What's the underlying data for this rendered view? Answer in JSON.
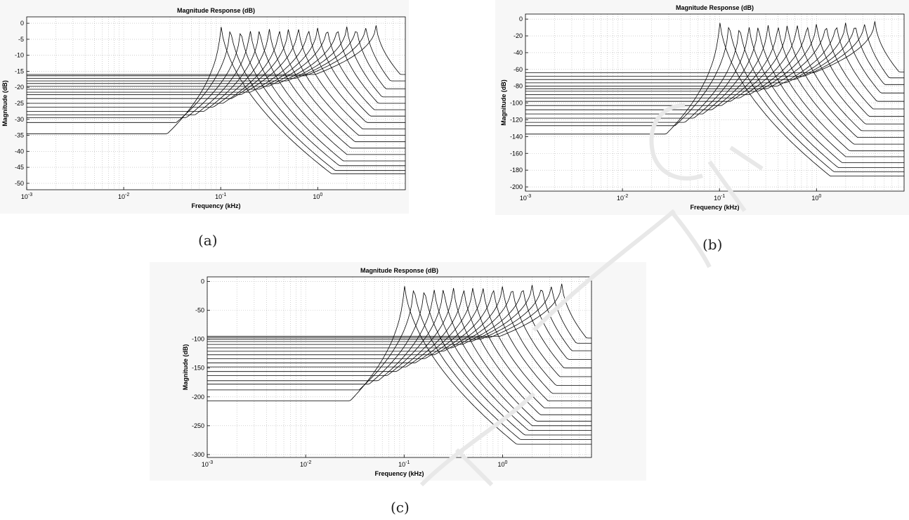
{
  "captions": {
    "a": "(a)",
    "b": "(b)",
    "c": "(c)"
  },
  "chart_data": [
    {
      "id": "a",
      "type": "line",
      "title": "Magnitude Response (dB)",
      "xlabel": "Frequency (kHz)",
      "ylabel": "Magnitude (dB)",
      "x_scale": "log",
      "xlim": [
        0.001,
        8
      ],
      "ylim": [
        -52,
        2
      ],
      "yticks": [
        0,
        -5,
        -10,
        -15,
        -20,
        -25,
        -30,
        -35,
        -40,
        -45,
        -50
      ],
      "xticks": [
        {
          "value": 0.001,
          "base": "10",
          "exp": "-3"
        },
        {
          "value": 0.01,
          "base": "10",
          "exp": "-2"
        },
        {
          "value": 0.1,
          "base": "10",
          "exp": "-1"
        },
        {
          "value": 1,
          "base": "10",
          "exp": "0"
        }
      ],
      "grid": true,
      "line_color": "#000000",
      "series_peak_freq_khz": [
        0.1,
        0.125,
        0.16,
        0.2,
        0.25,
        0.315,
        0.4,
        0.5,
        0.63,
        0.8,
        1.0,
        1.25,
        1.6,
        2.0,
        2.5,
        3.15,
        4.0
      ],
      "series_peak_db": [
        1.2,
        0.5,
        0,
        0,
        0,
        0,
        0,
        0,
        0,
        0,
        0,
        0,
        0,
        0,
        0,
        0,
        0
      ],
      "series_low_freq_db": [
        -34.5,
        -31,
        -29.5,
        -28.6,
        -27.5,
        -26.2,
        -25,
        -23.5,
        -22.3,
        -21.5,
        -20.6,
        -19.7,
        -18.8,
        -18,
        -17.2,
        -16.4,
        -16
      ],
      "series_high_freq_db": [
        -47,
        -46,
        -44.5,
        -43,
        -41,
        -39,
        -37,
        -35,
        -33,
        -31,
        -29,
        -27,
        -25,
        -23,
        -20.5,
        -18,
        -16
      ]
    },
    {
      "id": "b",
      "type": "line",
      "title": "Magnitude Response (dB)",
      "xlabel": "Frequency (kHz)",
      "ylabel": "Magnitude (dB)",
      "x_scale": "log",
      "xlim": [
        0.001,
        8
      ],
      "ylim": [
        -205,
        6
      ],
      "yticks": [
        0,
        -20,
        -40,
        -60,
        -80,
        -100,
        -120,
        -140,
        -160,
        -180,
        -200
      ],
      "xticks": [
        {
          "value": 0.001,
          "base": "10",
          "exp": "-3"
        },
        {
          "value": 0.01,
          "base": "10",
          "exp": "-2"
        },
        {
          "value": 0.1,
          "base": "10",
          "exp": "-1"
        },
        {
          "value": 1,
          "base": "10",
          "exp": "0"
        }
      ],
      "grid": true,
      "line_color": "#000000",
      "series_peak_freq_khz": [
        0.1,
        0.125,
        0.16,
        0.2,
        0.25,
        0.315,
        0.4,
        0.5,
        0.63,
        0.8,
        1.0,
        1.25,
        1.6,
        2.0,
        2.5,
        3.15,
        4.0
      ],
      "series_peak_db": [
        5,
        3,
        0,
        0,
        0,
        0,
        0,
        0,
        0,
        0,
        0,
        0,
        0,
        0,
        0,
        0,
        0
      ],
      "series_low_freq_db": [
        -137,
        -127,
        -123,
        -118,
        -113,
        -108,
        -103,
        -98,
        -94,
        -90,
        -86,
        -83,
        -80,
        -76,
        -72,
        -68,
        -64
      ],
      "series_high_freq_db": [
        -187,
        -182,
        -177,
        -171,
        -164,
        -157,
        -149,
        -141,
        -133,
        -125,
        -116,
        -107,
        -98,
        -88,
        -78,
        -70,
        -63
      ]
    },
    {
      "id": "c",
      "type": "line",
      "title": "Magnitude Response (dB)",
      "xlabel": "Frequency (kHz)",
      "ylabel": "Magnitude (dB)",
      "x_scale": "log",
      "xlim": [
        0.001,
        8
      ],
      "ylim": [
        -305,
        8
      ],
      "yticks": [
        0,
        -50,
        -100,
        -150,
        -200,
        -250,
        -300
      ],
      "xticks": [
        {
          "value": 0.001,
          "base": "10",
          "exp": "-3"
        },
        {
          "value": 0.01,
          "base": "10",
          "exp": "-2"
        },
        {
          "value": 0.1,
          "base": "10",
          "exp": "-1"
        },
        {
          "value": 1,
          "base": "10",
          "exp": "0"
        }
      ],
      "grid": true,
      "line_color": "#000000",
      "series_peak_freq_khz": [
        0.1,
        0.125,
        0.16,
        0.2,
        0.25,
        0.315,
        0.4,
        0.5,
        0.63,
        0.8,
        1.0,
        1.25,
        1.6,
        2.0,
        2.5,
        3.15,
        4.0
      ],
      "series_peak_db": [
        6,
        3,
        0,
        0,
        0,
        0,
        0,
        0,
        0,
        0,
        0,
        0,
        0,
        0,
        0,
        0,
        0
      ],
      "series_low_freq_db": [
        -207,
        -188,
        -178,
        -172,
        -163,
        -156,
        -148,
        -141,
        -134,
        -127,
        -121,
        -115,
        -109,
        -104,
        -100,
        -97,
        -95
      ],
      "series_high_freq_db": [
        -282,
        -274,
        -266,
        -258,
        -250,
        -242,
        -231,
        -219,
        -207,
        -194,
        -180,
        -165,
        -150,
        -135,
        -120,
        -107,
        -98
      ]
    }
  ]
}
